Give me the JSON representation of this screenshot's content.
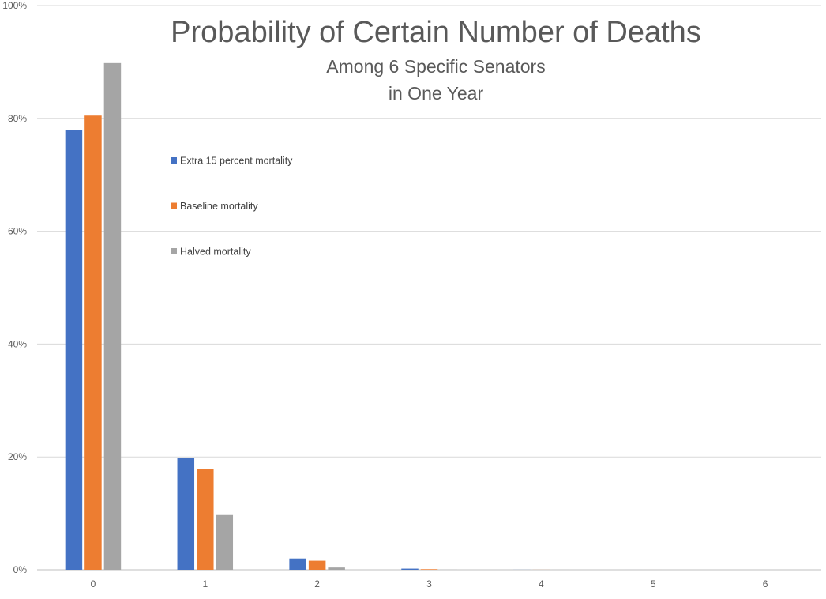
{
  "chart_data": {
    "type": "bar",
    "title": "Probability of Certain Number of Deaths",
    "subtitle_lines": [
      "Among 6 Specific Senators",
      "in One Year"
    ],
    "xlabel": "",
    "ylabel": "",
    "categories": [
      "0",
      "1",
      "2",
      "3",
      "4",
      "5",
      "6"
    ],
    "series": [
      {
        "name": "Extra 15 percent mortality",
        "color": "#4472C4",
        "values": [
          0.78,
          0.198,
          0.02,
          0.002,
          0.0001,
          1e-05,
          0
        ]
      },
      {
        "name": "Baseline mortality",
        "color": "#ED7D31",
        "values": [
          0.805,
          0.178,
          0.016,
          0.001,
          0.0001,
          1e-05,
          0
        ]
      },
      {
        "name": "Halved mortality",
        "color": "#A5A5A5",
        "values": [
          0.898,
          0.097,
          0.004,
          0.0002,
          1e-05,
          0,
          0
        ]
      }
    ],
    "ylim": [
      0,
      1
    ],
    "y_ticks": [
      0,
      0.2,
      0.4,
      0.6,
      0.8,
      1.0
    ],
    "y_tick_labels": [
      "0%",
      "20%",
      "40%",
      "60%",
      "80%",
      "100%"
    ],
    "grid": true,
    "legend_position": "top-left inside plot"
  }
}
